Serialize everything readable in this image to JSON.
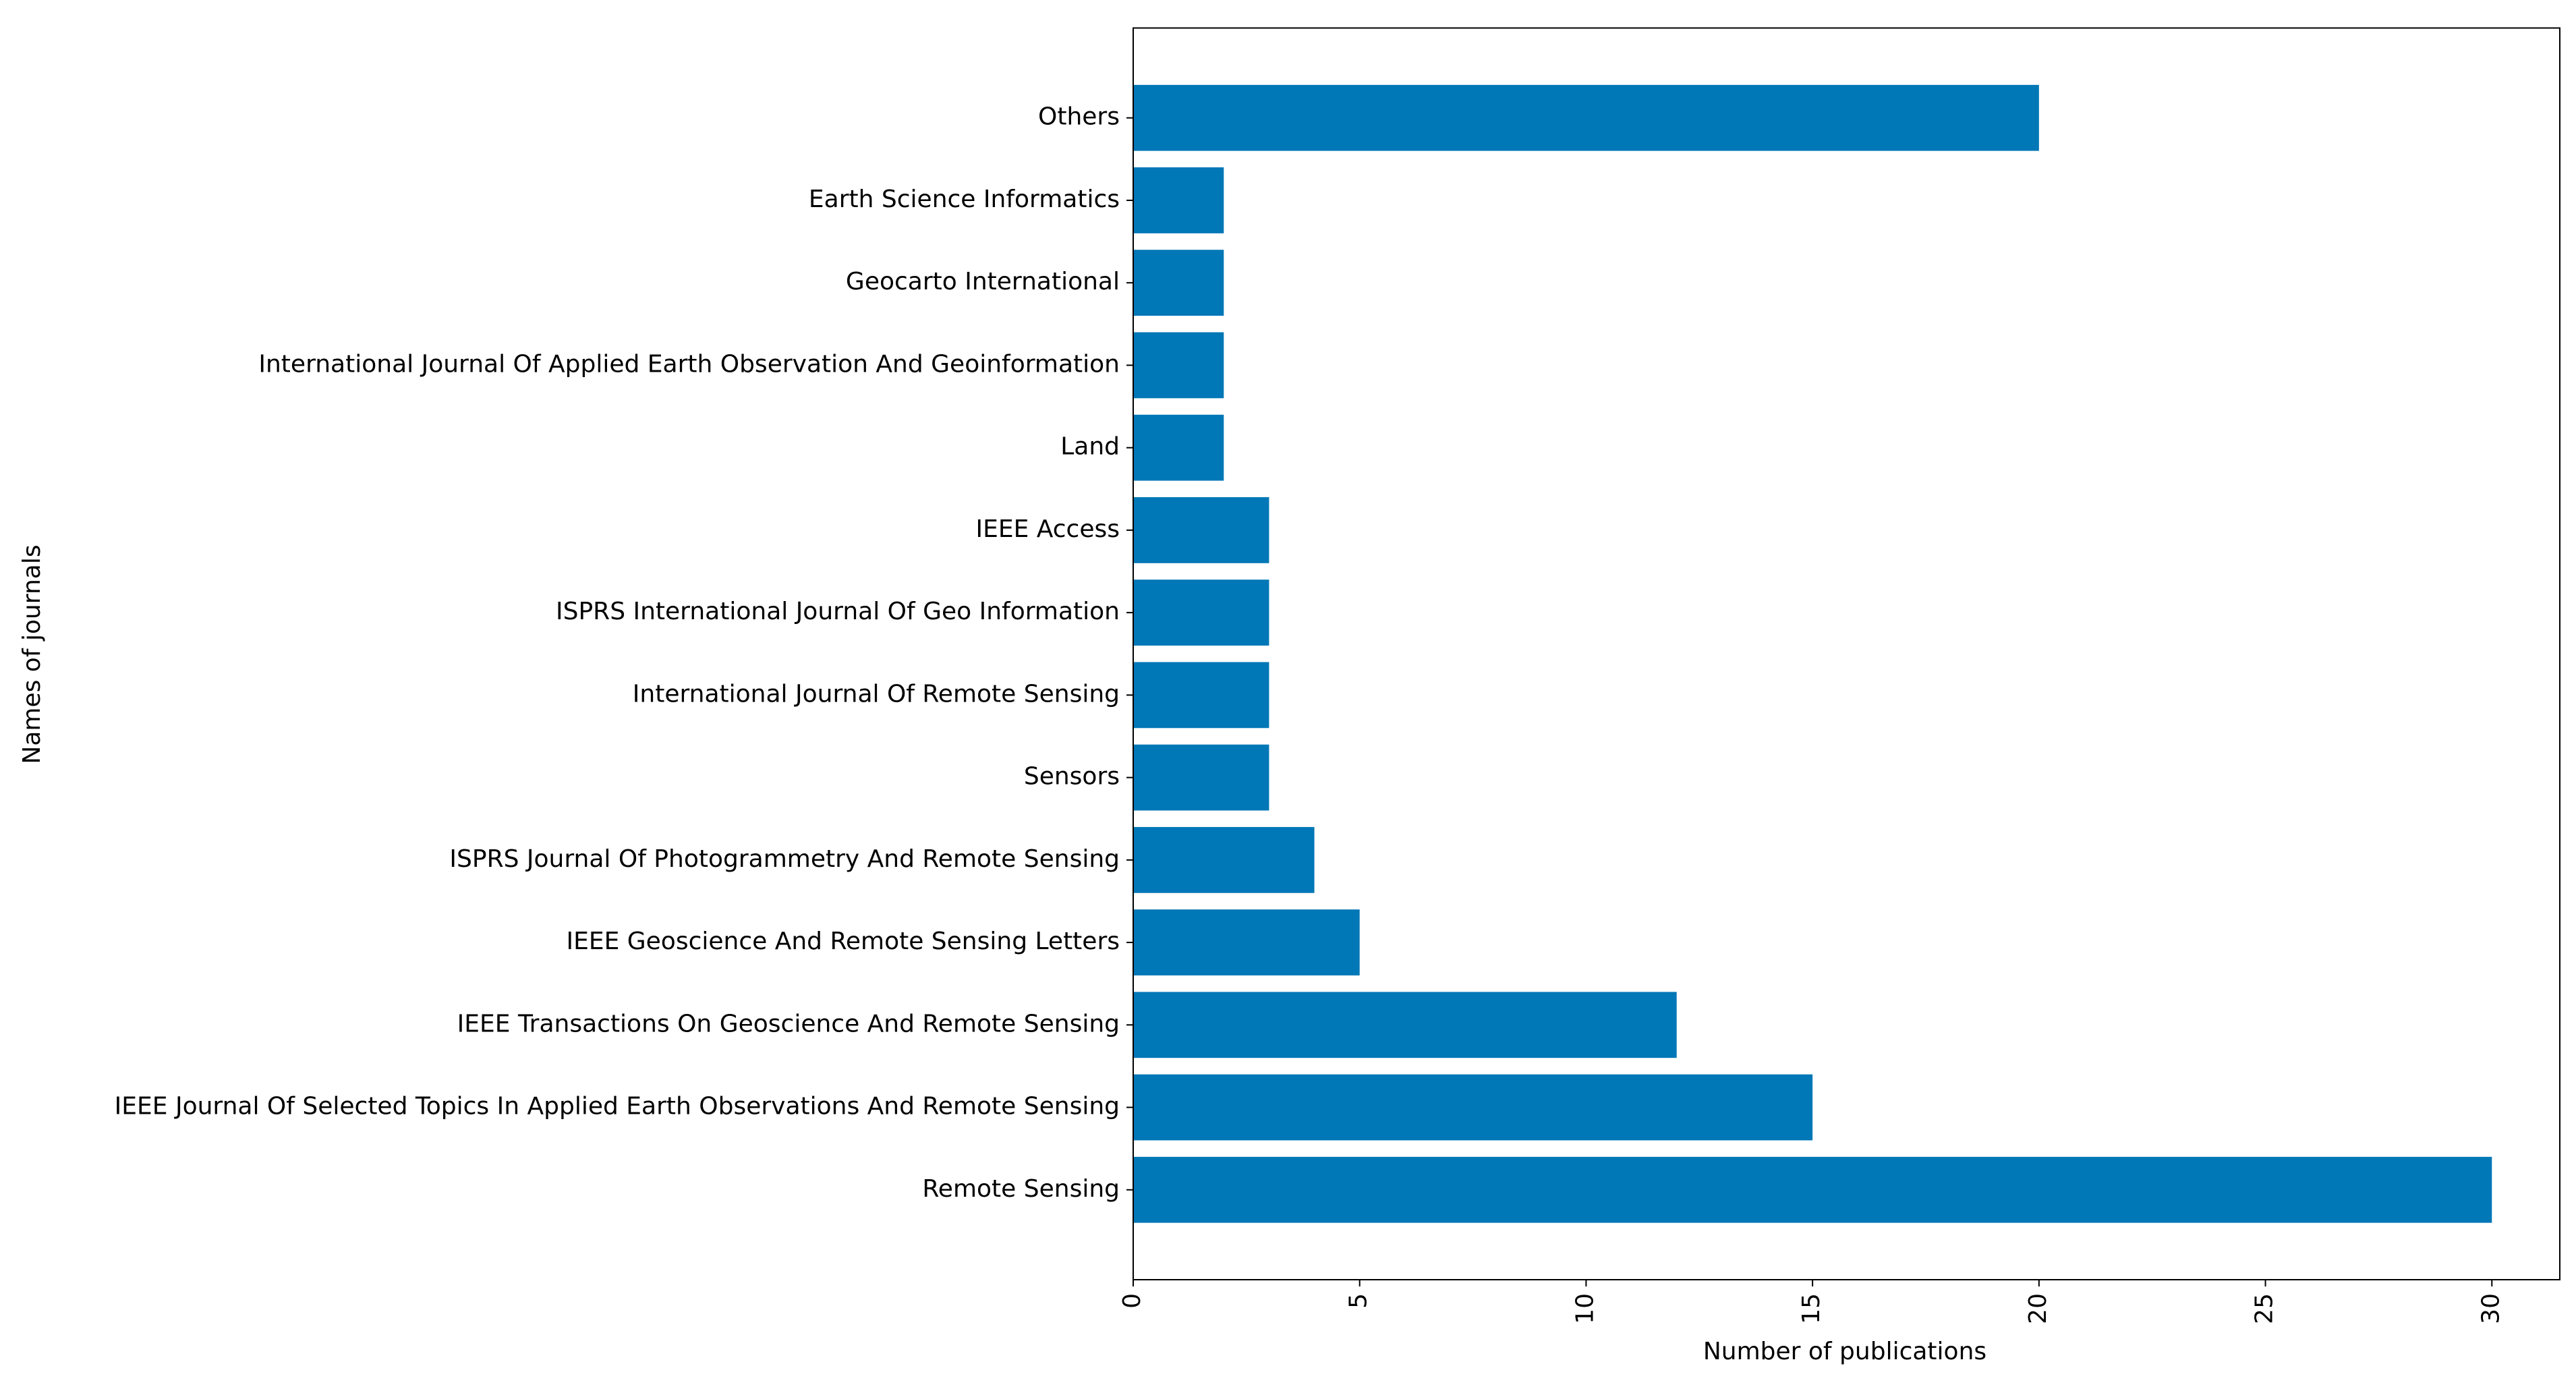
{
  "chart_data": {
    "type": "barh",
    "categories": [
      "Remote Sensing",
      "IEEE Journal Of Selected Topics In Applied Earth Observations And Remote Sensing",
      "IEEE Transactions On Geoscience And Remote Sensing",
      "IEEE Geoscience And Remote Sensing Letters",
      "ISPRS Journal Of Photogrammetry And Remote Sensing",
      "Sensors",
      "International Journal Of Remote Sensing",
      "ISPRS International Journal Of Geo Information",
      "IEEE Access",
      "Land",
      "International Journal Of Applied Earth Observation And Geoinformation",
      "Geocarto International",
      "Earth Science Informatics",
      "Others"
    ],
    "values": [
      30,
      15,
      12,
      5,
      4,
      3,
      3,
      3,
      3,
      2,
      2,
      2,
      2,
      20
    ],
    "color": "#0077b6",
    "x_label": "Number of publications",
    "y_label": "Names of journals",
    "xlim": [
      0,
      31.5
    ],
    "xticks": [
      0,
      5,
      10,
      15,
      20,
      25,
      30
    ],
    "grid": false
  }
}
